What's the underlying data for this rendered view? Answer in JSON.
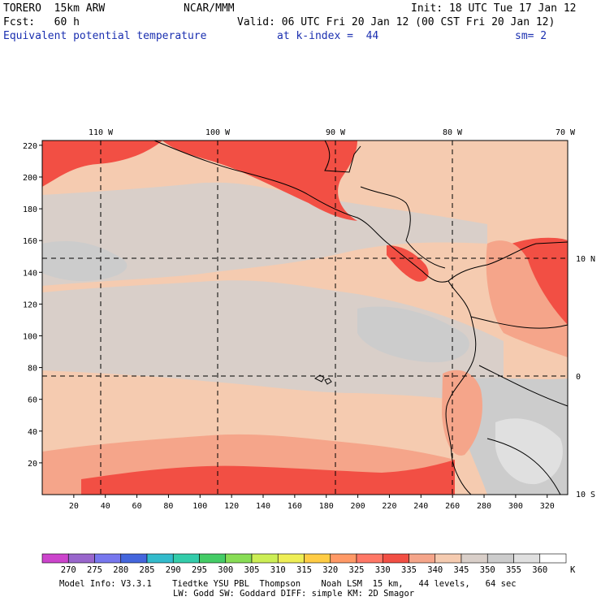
{
  "header": {
    "model": "TORERO  15km ARW",
    "org": "NCAR/MMM",
    "init": "Init: 18 UTC Tue 17 Jan 12",
    "fcst": "Fcst:   60 h",
    "valid": "Valid: 06 UTC Fri 20 Jan 12 (00 CST Fri 20 Jan 12)",
    "field": "Equivalent potential temperature",
    "level": "at k-index =  44",
    "smooth": "sm= 2"
  },
  "map": {
    "lon_labels": [
      "110 W",
      "100 W",
      "90 W",
      "80 W",
      "70 W"
    ],
    "lat_labels": [
      "10 N",
      "0",
      "10 S"
    ],
    "y_ticks": [
      "20",
      "40",
      "60",
      "80",
      "100",
      "120",
      "140",
      "160",
      "180",
      "200",
      "220"
    ],
    "x_ticks": [
      "20",
      "40",
      "60",
      "80",
      "100",
      "120",
      "140",
      "160",
      "180",
      "200",
      "220",
      "240",
      "260",
      "280",
      "300",
      "320"
    ],
    "colors": {
      "c340": "#f5cbb0",
      "c345": "#d9cfc9",
      "c350": "#cccccc",
      "c335": "#f5a58a",
      "c330": "#f26d5b",
      "c325": "#f24f44",
      "c355": "#e0e0e0",
      "c360": "#f5f5f5"
    }
  },
  "colorbar": {
    "values": [
      "270",
      "275",
      "280",
      "285",
      "290",
      "295",
      "300",
      "305",
      "310",
      "315",
      "320",
      "325",
      "330",
      "335",
      "340",
      "345",
      "350",
      "355",
      "360"
    ],
    "unit": "K",
    "colors": [
      "#cc44cc",
      "#9966cc",
      "#7777ee",
      "#4466dd",
      "#33bbcc",
      "#33ccaa",
      "#44cc66",
      "#88dd55",
      "#ccee55",
      "#eeee55",
      "#ffcc44",
      "#ff9966",
      "#ff7766",
      "#f24f44",
      "#f5a58a",
      "#f5cbb0",
      "#d9cfc9",
      "#cccccc",
      "#e0e0e0",
      "#ffffff"
    ]
  },
  "footer": {
    "line1": "Model Info: V3.3.1    Tiedtke YSU PBL  Thompson    Noah LSM  15 km,   44 levels,   64 sec",
    "line2": "LW: Godd SW: Goddard DIFF: simple KM: 2D Smagor"
  }
}
